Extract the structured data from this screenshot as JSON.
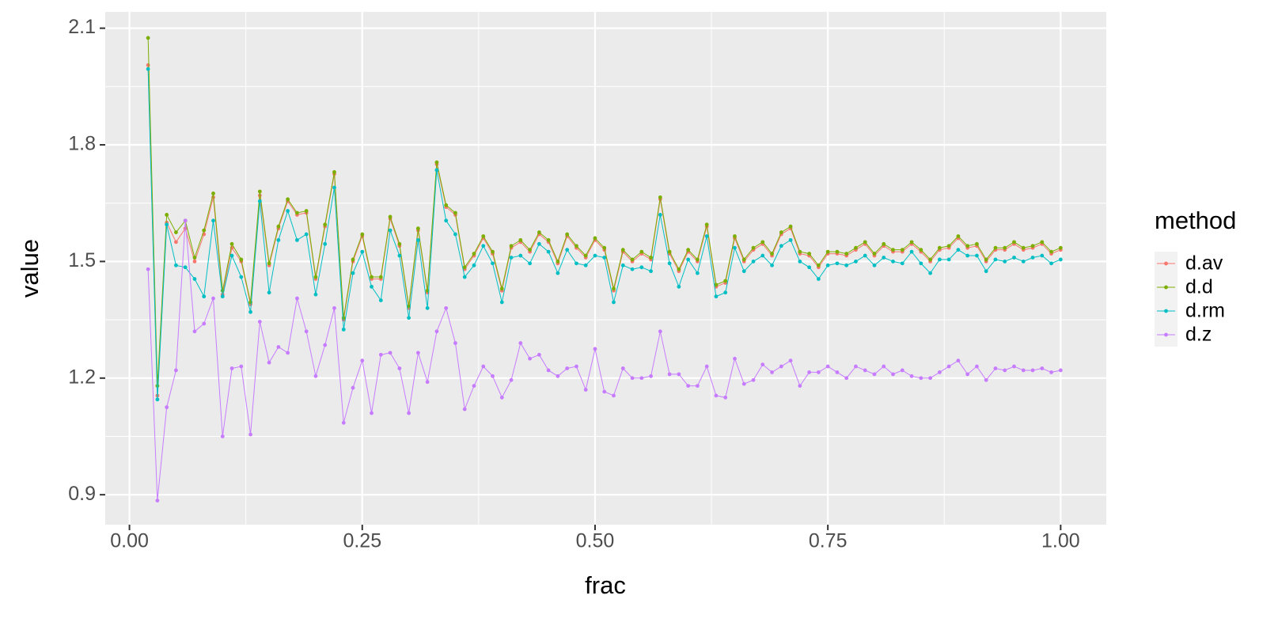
{
  "chart_data": {
    "type": "line",
    "x_label": "frac",
    "y_label": "value",
    "legend_title": "method",
    "legend": "right",
    "grid": true,
    "xlim": [
      -0.026,
      1.049
    ],
    "ylim": [
      0.823,
      2.142
    ],
    "xticks": [
      {
        "value": 0,
        "label": "0.00"
      },
      0.25,
      {
        "value": 0.5,
        "label": "0.50"
      },
      0.75,
      {
        "value": 1,
        "label": "1.00"
      }
    ],
    "yticks": [
      0.9,
      1.2,
      1.5,
      1.8,
      2.1
    ],
    "x": [
      0.02,
      0.03,
      0.04,
      0.05,
      0.06,
      0.07,
      0.08,
      0.09,
      0.1,
      0.11,
      0.12,
      0.13,
      0.14,
      0.15,
      0.16,
      0.17,
      0.18,
      0.19,
      0.2,
      0.21,
      0.22,
      0.23,
      0.24,
      0.25,
      0.26,
      0.27,
      0.28,
      0.29,
      0.3,
      0.31,
      0.32,
      0.33,
      0.34,
      0.35,
      0.36,
      0.37,
      0.38,
      0.39,
      0.4,
      0.41,
      0.42,
      0.43,
      0.44,
      0.45,
      0.46,
      0.47,
      0.48,
      0.49,
      0.5,
      0.51,
      0.52,
      0.53,
      0.54,
      0.55,
      0.56,
      0.57,
      0.58,
      0.59,
      0.6,
      0.61,
      0.62,
      0.63,
      0.64,
      0.65,
      0.66,
      0.67,
      0.68,
      0.69,
      0.7,
      0.71,
      0.72,
      0.73,
      0.74,
      0.75,
      0.76,
      0.77,
      0.78,
      0.79,
      0.8,
      0.81,
      0.82,
      0.83,
      0.84,
      0.85,
      0.86,
      0.87,
      0.88,
      0.89,
      0.9,
      0.91,
      0.92,
      0.93,
      0.94,
      0.95,
      0.96,
      0.97,
      0.98,
      0.99,
      1.0
    ],
    "series": [
      {
        "name": "d.av",
        "color": "#F8766D",
        "values": [
          2.005,
          1.155,
          1.6,
          1.55,
          1.585,
          1.5,
          1.57,
          1.665,
          1.415,
          1.535,
          1.5,
          1.39,
          1.67,
          1.49,
          1.585,
          1.655,
          1.62,
          1.625,
          1.455,
          1.59,
          1.725,
          1.35,
          1.5,
          1.565,
          1.455,
          1.455,
          1.61,
          1.54,
          1.38,
          1.58,
          1.42,
          1.75,
          1.64,
          1.62,
          1.48,
          1.515,
          1.56,
          1.52,
          1.425,
          1.535,
          1.55,
          1.525,
          1.57,
          1.55,
          1.495,
          1.565,
          1.535,
          1.51,
          1.555,
          1.53,
          1.425,
          1.525,
          1.5,
          1.52,
          1.505,
          1.66,
          1.52,
          1.475,
          1.525,
          1.5,
          1.59,
          1.435,
          1.445,
          1.56,
          1.5,
          1.53,
          1.545,
          1.515,
          1.57,
          1.585,
          1.52,
          1.515,
          1.485,
          1.52,
          1.52,
          1.515,
          1.53,
          1.545,
          1.515,
          1.54,
          1.525,
          1.525,
          1.545,
          1.525,
          1.5,
          1.53,
          1.535,
          1.56,
          1.535,
          1.54,
          1.5,
          1.53,
          1.53,
          1.545,
          1.53,
          1.535,
          1.545,
          1.52,
          1.53
        ]
      },
      {
        "name": "d.d",
        "color": "#7CAE00",
        "values": [
          2.075,
          1.18,
          1.62,
          1.575,
          1.605,
          1.51,
          1.58,
          1.675,
          1.425,
          1.545,
          1.505,
          1.395,
          1.68,
          1.495,
          1.59,
          1.66,
          1.625,
          1.63,
          1.46,
          1.595,
          1.73,
          1.355,
          1.505,
          1.57,
          1.46,
          1.46,
          1.615,
          1.545,
          1.385,
          1.585,
          1.425,
          1.755,
          1.645,
          1.625,
          1.485,
          1.52,
          1.565,
          1.525,
          1.43,
          1.54,
          1.555,
          1.53,
          1.575,
          1.555,
          1.5,
          1.57,
          1.54,
          1.515,
          1.56,
          1.535,
          1.43,
          1.53,
          1.505,
          1.525,
          1.51,
          1.665,
          1.525,
          1.48,
          1.53,
          1.505,
          1.595,
          1.44,
          1.45,
          1.565,
          1.505,
          1.535,
          1.55,
          1.52,
          1.575,
          1.59,
          1.525,
          1.52,
          1.49,
          1.525,
          1.525,
          1.52,
          1.535,
          1.55,
          1.52,
          1.545,
          1.53,
          1.53,
          1.55,
          1.53,
          1.505,
          1.535,
          1.54,
          1.565,
          1.54,
          1.545,
          1.505,
          1.535,
          1.535,
          1.55,
          1.535,
          1.54,
          1.55,
          1.525,
          1.535
        ]
      },
      {
        "name": "d.rm",
        "color": "#00BFC4",
        "values": [
          1.995,
          1.145,
          1.595,
          1.49,
          1.485,
          1.455,
          1.41,
          1.605,
          1.41,
          1.515,
          1.46,
          1.37,
          1.655,
          1.42,
          1.555,
          1.63,
          1.555,
          1.57,
          1.415,
          1.545,
          1.69,
          1.325,
          1.47,
          1.525,
          1.435,
          1.4,
          1.58,
          1.515,
          1.355,
          1.555,
          1.38,
          1.735,
          1.605,
          1.57,
          1.46,
          1.49,
          1.54,
          1.495,
          1.395,
          1.51,
          1.515,
          1.495,
          1.545,
          1.525,
          1.47,
          1.53,
          1.495,
          1.49,
          1.515,
          1.51,
          1.395,
          1.49,
          1.48,
          1.485,
          1.475,
          1.62,
          1.495,
          1.435,
          1.505,
          1.47,
          1.565,
          1.41,
          1.42,
          1.535,
          1.475,
          1.5,
          1.515,
          1.49,
          1.54,
          1.555,
          1.5,
          1.485,
          1.455,
          1.49,
          1.495,
          1.49,
          1.5,
          1.515,
          1.49,
          1.51,
          1.5,
          1.495,
          1.525,
          1.495,
          1.47,
          1.505,
          1.505,
          1.53,
          1.515,
          1.515,
          1.475,
          1.505,
          1.5,
          1.51,
          1.5,
          1.51,
          1.515,
          1.495,
          1.505
        ]
      },
      {
        "name": "d.z",
        "color": "#C77CFF",
        "values": [
          1.48,
          0.885,
          1.125,
          1.22,
          1.605,
          1.32,
          1.34,
          1.405,
          1.05,
          1.225,
          1.23,
          1.055,
          1.345,
          1.24,
          1.28,
          1.265,
          1.405,
          1.32,
          1.205,
          1.285,
          1.38,
          1.085,
          1.175,
          1.245,
          1.11,
          1.26,
          1.265,
          1.225,
          1.11,
          1.265,
          1.19,
          1.32,
          1.38,
          1.29,
          1.12,
          1.18,
          1.23,
          1.205,
          1.15,
          1.195,
          1.29,
          1.25,
          1.26,
          1.22,
          1.205,
          1.225,
          1.23,
          1.17,
          1.275,
          1.165,
          1.155,
          1.225,
          1.2,
          1.2,
          1.205,
          1.32,
          1.21,
          1.21,
          1.18,
          1.18,
          1.23,
          1.155,
          1.15,
          1.25,
          1.185,
          1.195,
          1.235,
          1.215,
          1.23,
          1.245,
          1.18,
          1.215,
          1.215,
          1.23,
          1.215,
          1.2,
          1.23,
          1.22,
          1.21,
          1.23,
          1.21,
          1.22,
          1.205,
          1.2,
          1.2,
          1.215,
          1.23,
          1.245,
          1.21,
          1.23,
          1.195,
          1.225,
          1.22,
          1.23,
          1.22,
          1.22,
          1.225,
          1.215,
          1.22
        ]
      }
    ]
  }
}
